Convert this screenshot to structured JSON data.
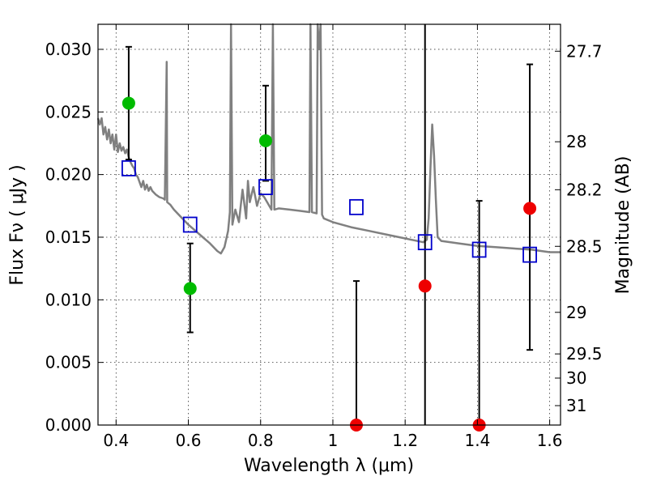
{
  "chart_data": {
    "type": "scatter",
    "title": "",
    "xlabel": "Wavelength  λ (μm)",
    "ylabel": "Flux  Fν  ( μJy )",
    "ylabel_right": "Magnitude (AB)",
    "xlim": [
      0.35,
      1.63
    ],
    "ylim": [
      0,
      0.032
    ],
    "grid": true,
    "x_ticks": [
      0.4,
      0.6,
      0.8,
      1.0,
      1.2,
      1.4,
      1.6
    ],
    "x_tick_labels": [
      "0.4",
      "0.6",
      "0.8",
      "1",
      "1.2",
      "1.4",
      "1.6"
    ],
    "y_ticks": [
      0,
      0.005,
      0.01,
      0.015,
      0.02,
      0.025,
      0.03
    ],
    "y_tick_labels": [
      "0.000",
      "0.005",
      "0.010",
      "0.015",
      "0.020",
      "0.025",
      "0.030"
    ],
    "right_ticks": [
      {
        "flux": 0.02985,
        "label": "27.7"
      },
      {
        "flux": 0.02262,
        "label": "28"
      },
      {
        "flux": 0.01879,
        "label": "28.2"
      },
      {
        "flux": 0.01427,
        "label": "28.5"
      },
      {
        "flux": 0.009,
        "label": "29"
      },
      {
        "flux": 0.00568,
        "label": "29.5"
      },
      {
        "flux": 0.00375,
        "label": "30"
      },
      {
        "flux": 0.00155,
        "label": "31"
      }
    ],
    "series": [
      {
        "type": "line",
        "color": "#808080",
        "points": [
          [
            0.35,
            0.0245
          ],
          [
            0.355,
            0.024
          ],
          [
            0.36,
            0.0245
          ],
          [
            0.365,
            0.0232
          ],
          [
            0.37,
            0.0238
          ],
          [
            0.375,
            0.0228
          ],
          [
            0.38,
            0.0236
          ],
          [
            0.385,
            0.0225
          ],
          [
            0.39,
            0.0232
          ],
          [
            0.395,
            0.022
          ],
          [
            0.4,
            0.0232
          ],
          [
            0.405,
            0.0218
          ],
          [
            0.41,
            0.0225
          ],
          [
            0.415,
            0.0219
          ],
          [
            0.42,
            0.0222
          ],
          [
            0.425,
            0.0217
          ],
          [
            0.43,
            0.022
          ],
          [
            0.435,
            0.0214
          ],
          [
            0.44,
            0.021
          ],
          [
            0.445,
            0.0207
          ],
          [
            0.45,
            0.0205
          ],
          [
            0.455,
            0.02
          ],
          [
            0.46,
            0.0198
          ],
          [
            0.465,
            0.0194
          ],
          [
            0.47,
            0.019
          ],
          [
            0.475,
            0.0195
          ],
          [
            0.48,
            0.0188
          ],
          [
            0.485,
            0.0192
          ],
          [
            0.49,
            0.0187
          ],
          [
            0.495,
            0.019
          ],
          [
            0.5,
            0.0187
          ],
          [
            0.51,
            0.0184
          ],
          [
            0.52,
            0.0182
          ],
          [
            0.53,
            0.0181
          ],
          [
            0.535,
            0.018
          ],
          [
            0.54,
            0.029
          ],
          [
            0.5415,
            0.0178
          ],
          [
            0.55,
            0.0176
          ],
          [
            0.56,
            0.0172
          ],
          [
            0.58,
            0.0166
          ],
          [
            0.6,
            0.016
          ],
          [
            0.62,
            0.0155
          ],
          [
            0.64,
            0.015
          ],
          [
            0.66,
            0.0145
          ],
          [
            0.68,
            0.0139
          ],
          [
            0.69,
            0.0137
          ],
          [
            0.7,
            0.0142
          ],
          [
            0.71,
            0.0155
          ],
          [
            0.715,
            0.017
          ],
          [
            0.718,
            0.032
          ],
          [
            0.722,
            0.016
          ],
          [
            0.73,
            0.0172
          ],
          [
            0.74,
            0.0162
          ],
          [
            0.75,
            0.0188
          ],
          [
            0.76,
            0.0165
          ],
          [
            0.765,
            0.0195
          ],
          [
            0.77,
            0.0178
          ],
          [
            0.78,
            0.019
          ],
          [
            0.79,
            0.0175
          ],
          [
            0.8,
            0.0185
          ],
          [
            0.81,
            0.0182
          ],
          [
            0.82,
            0.0177
          ],
          [
            0.83,
            0.0172
          ],
          [
            0.834,
            0.032
          ],
          [
            0.838,
            0.0172
          ],
          [
            0.85,
            0.0173
          ],
          [
            0.88,
            0.0172
          ],
          [
            0.91,
            0.0171
          ],
          [
            0.935,
            0.017
          ],
          [
            0.938,
            0.032
          ],
          [
            0.942,
            0.017
          ],
          [
            0.955,
            0.0169
          ],
          [
            0.958,
            0.032
          ],
          [
            0.962,
            0.03
          ],
          [
            0.966,
            0.032
          ],
          [
            0.97,
            0.0168
          ],
          [
            0.975,
            0.0165
          ],
          [
            1.0,
            0.0162
          ],
          [
            1.05,
            0.0158
          ],
          [
            1.1,
            0.0155
          ],
          [
            1.15,
            0.0152
          ],
          [
            1.2,
            0.0149
          ],
          [
            1.25,
            0.0146
          ],
          [
            1.26,
            0.0148
          ],
          [
            1.265,
            0.0165
          ],
          [
            1.27,
            0.0205
          ],
          [
            1.275,
            0.024
          ],
          [
            1.28,
            0.0215
          ],
          [
            1.285,
            0.018
          ],
          [
            1.29,
            0.015
          ],
          [
            1.3,
            0.0147
          ],
          [
            1.35,
            0.0145
          ],
          [
            1.4,
            0.0143
          ],
          [
            1.45,
            0.0142
          ],
          [
            1.5,
            0.0141
          ],
          [
            1.55,
            0.014
          ],
          [
            1.6,
            0.0138
          ],
          [
            1.63,
            0.0138
          ]
        ]
      },
      {
        "type": "scatter",
        "name": "",
        "marker": "circle",
        "color": "#00bb00",
        "points": [
          [
            0.435,
            0.0257
          ],
          [
            0.605,
            0.0109
          ],
          [
            0.814,
            0.0227
          ]
        ]
      },
      {
        "type": "scatter",
        "name": "",
        "marker": "circle",
        "color": "#ee0000",
        "points": [
          [
            1.065,
            0.0
          ],
          [
            1.255,
            0.0111
          ],
          [
            1.405,
            0.0
          ],
          [
            1.545,
            0.0173
          ]
        ]
      },
      {
        "type": "scatter",
        "name": "",
        "marker": "open-square",
        "color": "#0000cc",
        "points": [
          [
            0.435,
            0.0205
          ],
          [
            0.605,
            0.016
          ],
          [
            0.814,
            0.019
          ],
          [
            1.065,
            0.0174
          ],
          [
            1.255,
            0.0146
          ],
          [
            1.405,
            0.014
          ],
          [
            1.545,
            0.0136
          ]
        ]
      }
    ],
    "error_bars": [
      {
        "x": 0.435,
        "low": 0.0212,
        "high": 0.0302
      },
      {
        "x": 0.605,
        "low": 0.0074,
        "high": 0.0145
      },
      {
        "x": 0.814,
        "low": 0.0195,
        "high": 0.0271
      },
      {
        "x": 1.065,
        "low": 0.0,
        "high": 0.0115
      },
      {
        "x": 1.255,
        "low": 0.0,
        "high": 0.032
      },
      {
        "x": 1.405,
        "low": 0.0,
        "high": 0.0179
      },
      {
        "x": 1.545,
        "low": 0.006,
        "high": 0.0288
      }
    ]
  }
}
